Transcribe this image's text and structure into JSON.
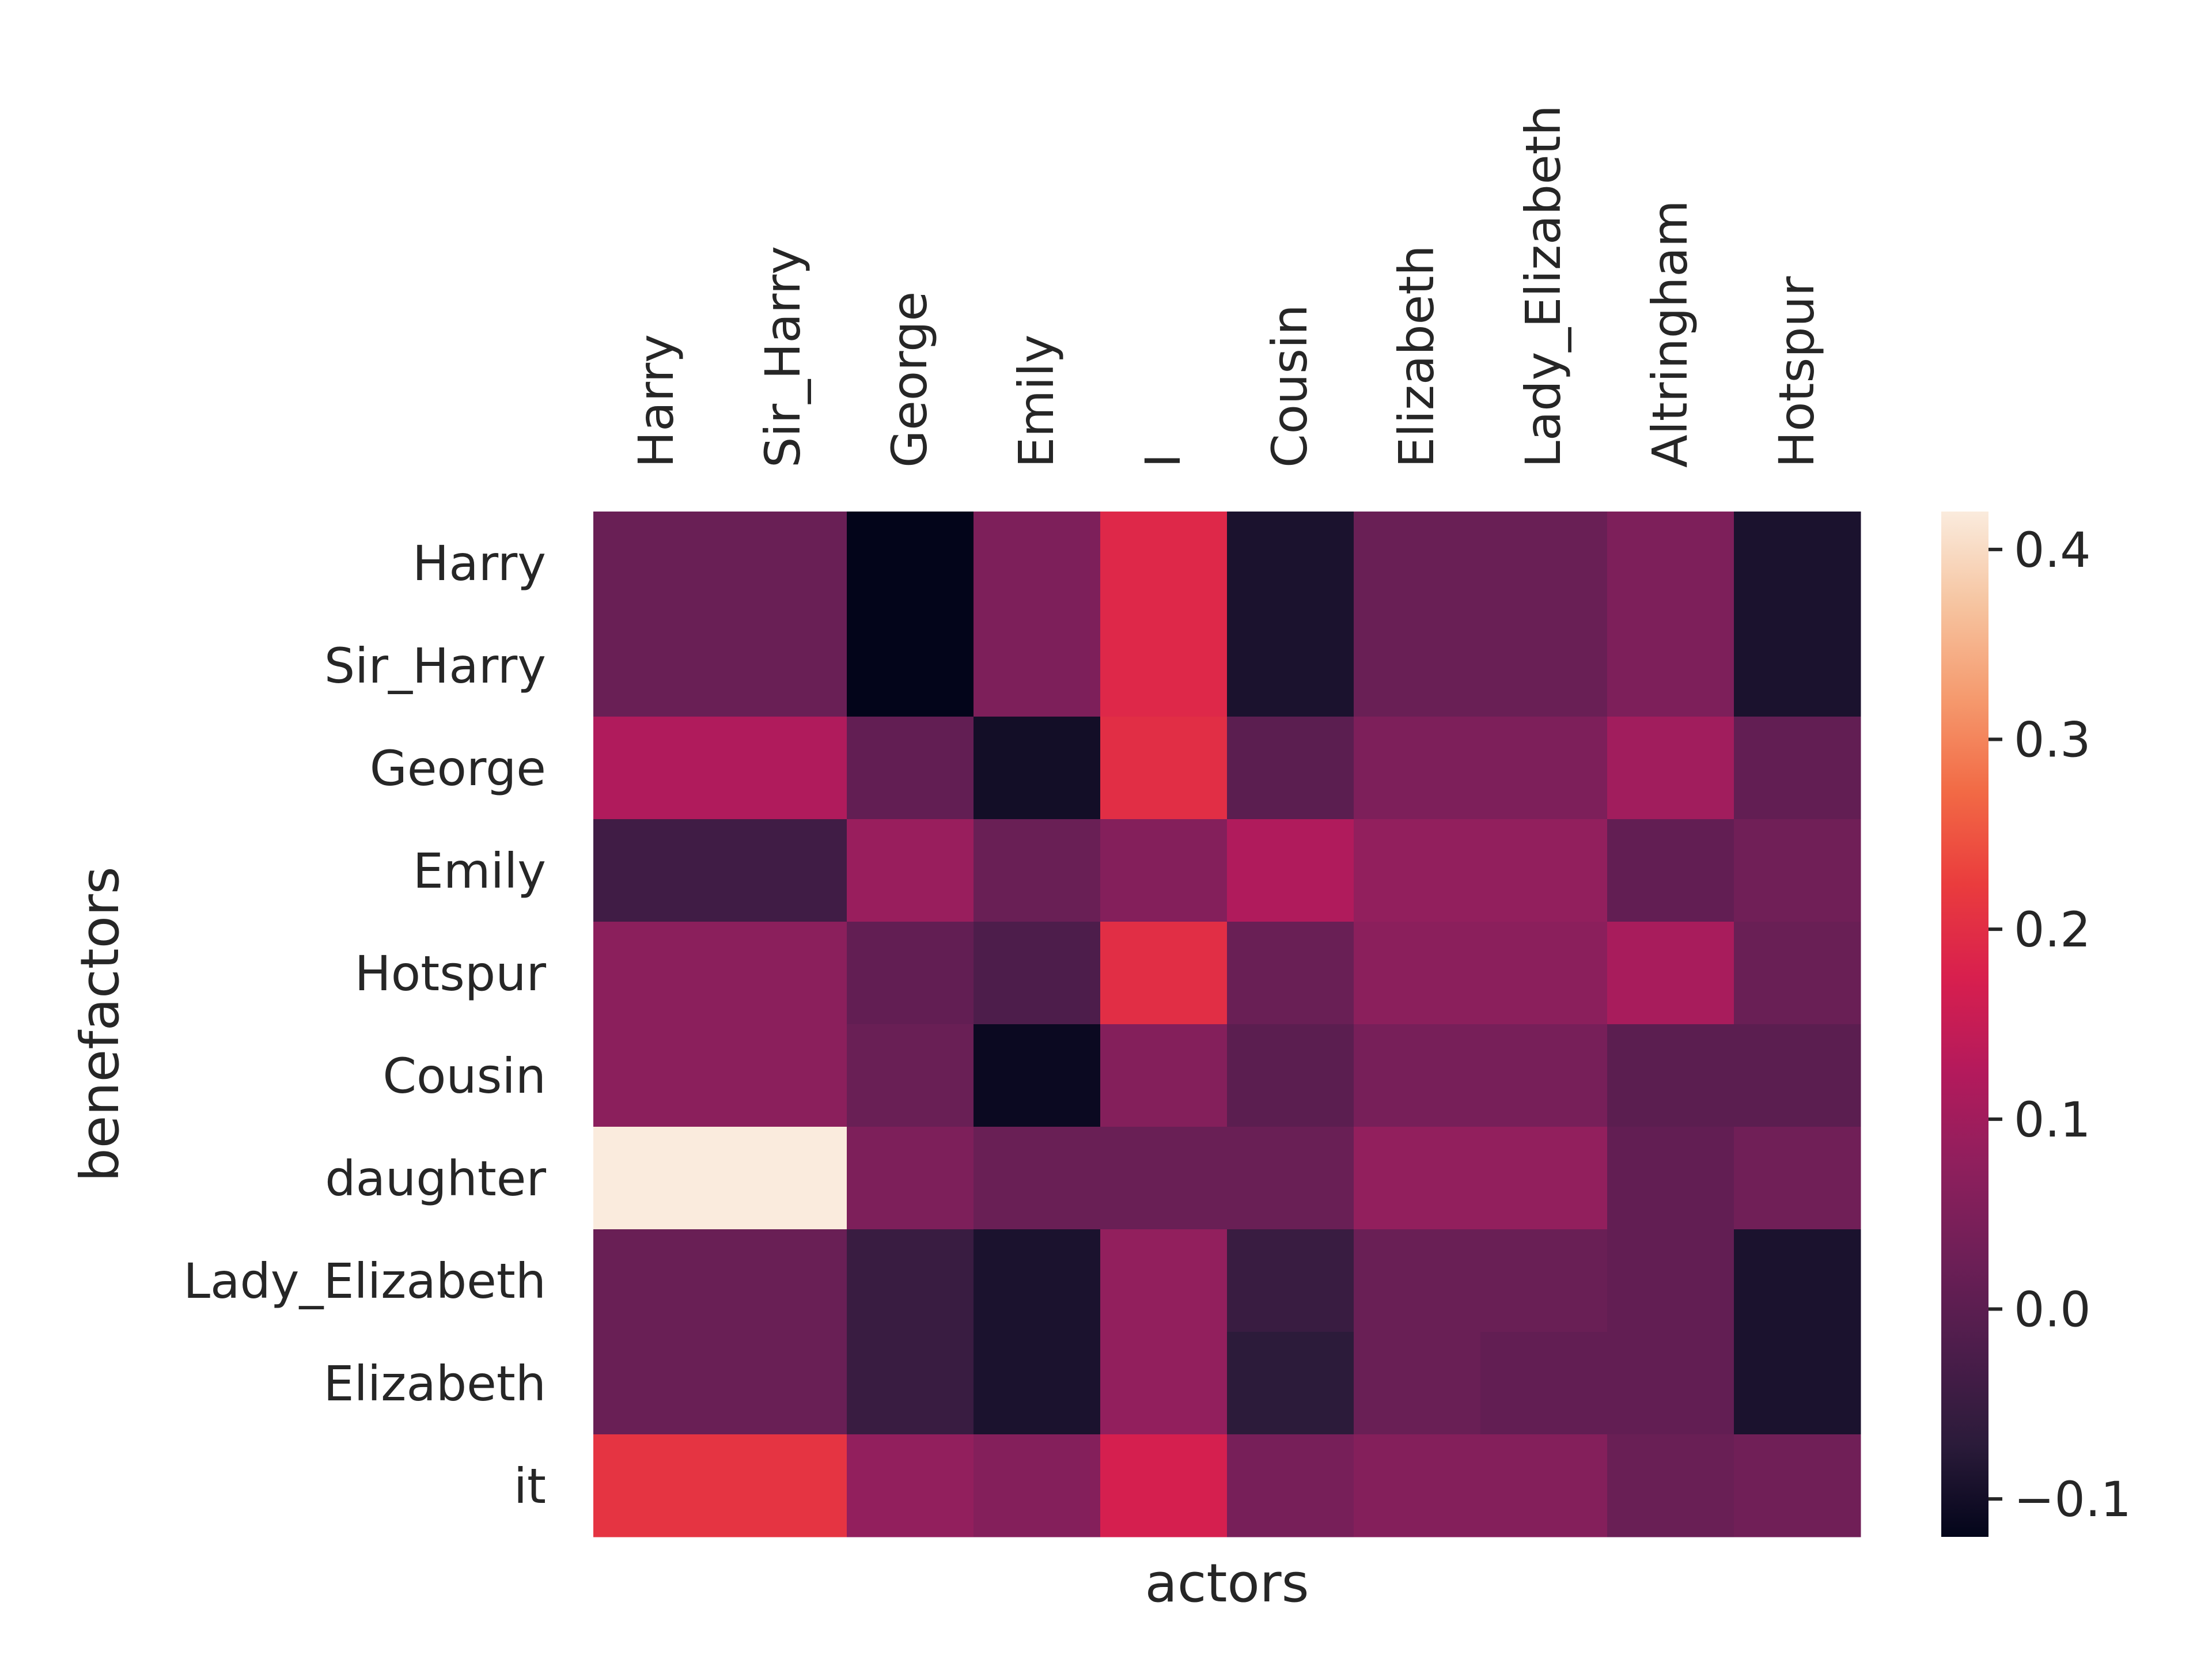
{
  "chart_data": {
    "type": "heatmap",
    "title": "",
    "xlabel": "actors",
    "ylabel": "benefactors",
    "x_categories": [
      "Harry",
      "Sir_Harry",
      "George",
      "Emily",
      "I",
      "Cousin",
      "Elizabeth",
      "Lady_Elizabeth",
      "Altringham",
      "Hotspur"
    ],
    "y_categories": [
      "Harry",
      "Sir_Harry",
      "George",
      "Emily",
      "Hotspur",
      "Cousin",
      "daughter",
      "Lady_Elizabeth",
      "Elizabeth",
      "it"
    ],
    "values": [
      [
        0.02,
        0.02,
        -0.12,
        0.05,
        0.19,
        -0.09,
        0.02,
        0.02,
        0.05,
        -0.09
      ],
      [
        0.02,
        0.02,
        -0.12,
        0.05,
        0.19,
        -0.09,
        0.02,
        0.02,
        0.05,
        -0.09
      ],
      [
        0.12,
        0.12,
        0.01,
        -0.1,
        0.2,
        0.0,
        0.05,
        0.05,
        0.1,
        0.01
      ],
      [
        -0.04,
        -0.04,
        0.09,
        0.02,
        0.06,
        0.12,
        0.08,
        0.08,
        0.01,
        0.03
      ],
      [
        0.07,
        0.07,
        0.01,
        -0.02,
        0.2,
        0.02,
        0.07,
        0.07,
        0.11,
        0.02
      ],
      [
        0.07,
        0.07,
        0.02,
        -0.11,
        0.06,
        0.0,
        0.04,
        0.04,
        0.0,
        0.0
      ],
      [
        0.42,
        0.42,
        0.05,
        0.02,
        0.02,
        0.02,
        0.08,
        0.08,
        0.01,
        0.03
      ],
      [
        0.02,
        0.02,
        -0.05,
        -0.09,
        0.08,
        -0.05,
        0.02,
        0.02,
        0.01,
        -0.09
      ],
      [
        0.02,
        0.02,
        -0.05,
        -0.09,
        0.08,
        -0.07,
        0.02,
        0.01,
        0.01,
        -0.09
      ],
      [
        0.21,
        0.21,
        0.08,
        0.06,
        0.17,
        0.04,
        0.06,
        0.06,
        0.02,
        0.03
      ]
    ],
    "colorbar": {
      "range": [
        -0.12,
        0.42
      ],
      "ticks": [
        -0.1,
        0.0,
        0.1,
        0.2,
        0.3,
        0.4
      ],
      "tick_labels": [
        "−0.1",
        "0.0",
        "0.1",
        "0.2",
        "0.3",
        "0.4"
      ],
      "colormap": "rocket",
      "color_stops": [
        "#03051a",
        "#2b1b3a",
        "#4c1d4b",
        "#6e1f57",
        "#8f1f5d",
        "#b41a5c",
        "#d81f4e",
        "#ea3c3d",
        "#f26a45",
        "#f59a6e",
        "#f6c4a0",
        "#faebdd"
      ]
    },
    "grid": false,
    "legend": "colorbar right"
  }
}
